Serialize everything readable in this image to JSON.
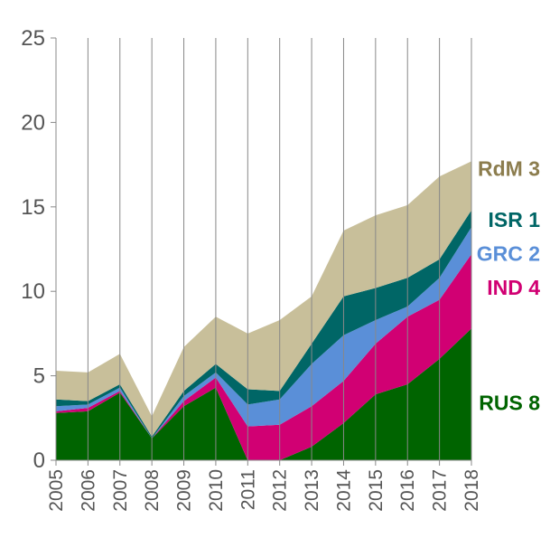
{
  "chart_data": {
    "type": "area",
    "stacked": true,
    "title": "",
    "xlabel": "",
    "ylabel": "",
    "ylim": [
      0,
      25
    ],
    "yticks": [
      0,
      5,
      10,
      15,
      20,
      25
    ],
    "grid": "vertical",
    "legend": "inline-right",
    "x": [
      "2005",
      "2006",
      "2007",
      "2008",
      "2009",
      "2010",
      "2011",
      "2012",
      "2013",
      "2014",
      "2015",
      "2016",
      "2017",
      "2018"
    ],
    "series": [
      {
        "name": "RUS 8",
        "color": "#006400",
        "values": [
          2.8,
          2.9,
          4.0,
          1.3,
          3.2,
          4.3,
          0.0,
          0.0,
          0.8,
          2.2,
          3.9,
          4.5,
          6.0,
          7.8
        ]
      },
      {
        "name": "IND 4",
        "color": "#D10073",
        "values": [
          0.1,
          0.2,
          0.1,
          0.0,
          0.3,
          0.6,
          2.0,
          2.1,
          2.4,
          2.5,
          3.0,
          4.0,
          3.5,
          4.4
        ]
      },
      {
        "name": "GRC 2",
        "color": "#5A8FD8",
        "values": [
          0.3,
          0.2,
          0.2,
          0.0,
          0.3,
          0.3,
          1.3,
          1.5,
          2.5,
          2.7,
          1.4,
          0.6,
          1.3,
          1.6
        ]
      },
      {
        "name": "ISR 1",
        "color": "#006666",
        "values": [
          0.4,
          0.2,
          0.2,
          0.1,
          0.3,
          0.5,
          0.9,
          0.5,
          1.2,
          2.3,
          1.9,
          1.7,
          1.1,
          1.0
        ]
      },
      {
        "name": "RdM 3",
        "color": "#C8BF9A",
        "values": [
          1.7,
          1.7,
          1.8,
          1.2,
          2.6,
          2.8,
          3.3,
          4.2,
          2.8,
          3.9,
          4.3,
          4.3,
          4.9,
          2.9
        ]
      }
    ],
    "label_colors": {
      "RdM 3": "#8C7D4E",
      "ISR 1": "#006666",
      "GRC 2": "#5A8FD8",
      "IND 4": "#D10073",
      "RUS 8": "#006400"
    }
  }
}
